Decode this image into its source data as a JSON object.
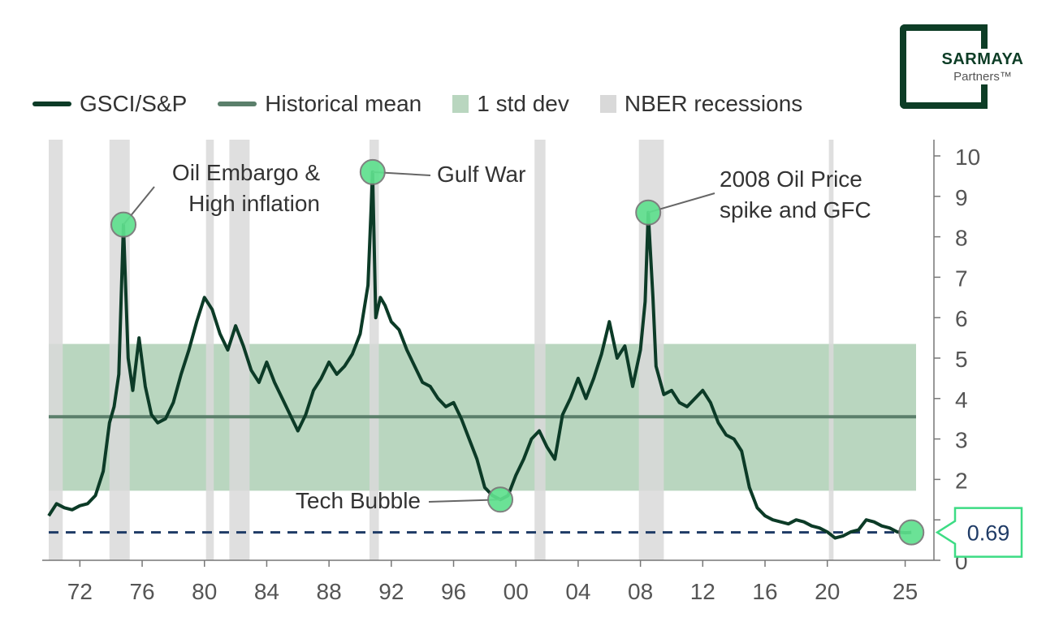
{
  "brand": {
    "name": "SARMAYA",
    "sub": "Partners™"
  },
  "legend": [
    {
      "label": "GSCI/S&P",
      "kind": "line",
      "color": "#0c3b27"
    },
    {
      "label": "Historical mean",
      "kind": "line",
      "color": "#5b7f6b"
    },
    {
      "label": "1 std dev",
      "kind": "box",
      "color": "#b9d6bf"
    },
    {
      "label": "NBER recessions",
      "kind": "box",
      "color": "#d9d9d9"
    }
  ],
  "colors": {
    "line": "#0c3b27",
    "mean": "#5b7f6b",
    "band": "#b9d6bf",
    "recession": "#d9d9d9",
    "marker": "#5fe08e",
    "current": "#1f3b66",
    "callout": "#3ddc84",
    "axis": "#777777"
  },
  "chart_data": {
    "type": "line",
    "title": "",
    "xlabel": "",
    "ylabel": "",
    "xlim": [
      1970.0,
      2025.7
    ],
    "ylim": [
      0,
      10
    ],
    "x_ticks": [
      1972,
      1976,
      1980,
      1984,
      1988,
      1992,
      1996,
      2000,
      2004,
      2008,
      2012,
      2016,
      2020,
      2025
    ],
    "x_tick_labels": [
      "72",
      "76",
      "80",
      "84",
      "88",
      "92",
      "96",
      "00",
      "04",
      "08",
      "12",
      "16",
      "20",
      "25"
    ],
    "y_ticks": [
      0,
      1,
      2,
      3,
      4,
      5,
      6,
      7,
      8,
      9,
      10
    ],
    "y_tick_labels": [
      "0",
      "1",
      "2",
      "3",
      "4",
      "5",
      "6",
      "7",
      "8",
      "9",
      "10"
    ],
    "mean": 3.55,
    "std_band": [
      1.72,
      5.35
    ],
    "recessions": [
      [
        1970.0,
        1970.9
      ],
      [
        1973.9,
        1975.2
      ],
      [
        1980.1,
        1980.6
      ],
      [
        1981.6,
        1982.9
      ],
      [
        1990.6,
        1991.2
      ],
      [
        2001.2,
        2001.9
      ],
      [
        2007.9,
        2009.5
      ],
      [
        2020.1,
        2020.4
      ]
    ],
    "current_value": 0.69,
    "current_label": "0.69",
    "series": [
      {
        "name": "GSCI/S&P",
        "x": [
          1970.0,
          1970.5,
          1971.0,
          1971.5,
          1972.0,
          1972.5,
          1973.0,
          1973.5,
          1973.9,
          1974.2,
          1974.5,
          1974.8,
          1975.1,
          1975.4,
          1975.8,
          1976.2,
          1976.6,
          1977.0,
          1977.5,
          1978.0,
          1978.5,
          1979.0,
          1979.5,
          1980.0,
          1980.5,
          1981.0,
          1981.5,
          1982.0,
          1982.5,
          1983.0,
          1983.5,
          1984.0,
          1984.5,
          1985.0,
          1985.5,
          1986.0,
          1986.5,
          1987.0,
          1987.5,
          1988.0,
          1988.5,
          1989.0,
          1989.5,
          1990.0,
          1990.5,
          1990.8,
          1991.0,
          1991.3,
          1991.6,
          1992.0,
          1992.5,
          1993.0,
          1993.5,
          1994.0,
          1994.5,
          1995.0,
          1995.5,
          1996.0,
          1996.5,
          1997.0,
          1997.5,
          1998.0,
          1998.5,
          1999.0,
          1999.5,
          2000.0,
          2000.5,
          2001.0,
          2001.5,
          2002.0,
          2002.5,
          2003.0,
          2003.5,
          2004.0,
          2004.5,
          2005.0,
          2005.5,
          2006.0,
          2006.5,
          2007.0,
          2007.5,
          2008.0,
          2008.3,
          2008.5,
          2008.8,
          2009.0,
          2009.5,
          2010.0,
          2010.5,
          2011.0,
          2011.5,
          2012.0,
          2012.5,
          2013.0,
          2013.5,
          2014.0,
          2014.5,
          2015.0,
          2015.5,
          2016.0,
          2016.5,
          2017.0,
          2017.5,
          2018.0,
          2018.5,
          2019.0,
          2019.5,
          2020.0,
          2020.5,
          2021.0,
          2021.5,
          2022.0,
          2022.5,
          2023.0,
          2023.5,
          2024.0,
          2024.5,
          2025.0,
          2025.4
        ],
        "y": [
          1.1,
          1.4,
          1.3,
          1.25,
          1.35,
          1.4,
          1.6,
          2.2,
          3.4,
          3.8,
          4.6,
          8.3,
          5.0,
          4.2,
          5.5,
          4.3,
          3.6,
          3.4,
          3.5,
          3.9,
          4.6,
          5.2,
          5.9,
          6.5,
          6.2,
          5.6,
          5.2,
          5.8,
          5.3,
          4.7,
          4.4,
          4.9,
          4.4,
          4.0,
          3.6,
          3.2,
          3.6,
          4.2,
          4.5,
          4.9,
          4.6,
          4.8,
          5.1,
          5.6,
          6.8,
          9.6,
          6.0,
          6.5,
          6.3,
          5.9,
          5.7,
          5.2,
          4.8,
          4.4,
          4.3,
          4.0,
          3.8,
          3.9,
          3.5,
          3.0,
          2.5,
          1.8,
          1.6,
          1.5,
          1.6,
          2.1,
          2.5,
          3.0,
          3.2,
          2.8,
          2.5,
          3.6,
          4.0,
          4.5,
          4.0,
          4.5,
          5.1,
          5.9,
          5.0,
          5.3,
          4.3,
          5.2,
          6.4,
          8.6,
          6.5,
          4.8,
          4.1,
          4.2,
          3.9,
          3.8,
          4.0,
          4.2,
          3.9,
          3.4,
          3.1,
          3.0,
          2.7,
          1.8,
          1.3,
          1.1,
          1.0,
          0.95,
          0.9,
          1.0,
          0.95,
          0.85,
          0.8,
          0.7,
          0.55,
          0.6,
          0.7,
          0.75,
          1.0,
          0.95,
          0.85,
          0.8,
          0.7,
          0.68,
          0.69
        ]
      }
    ],
    "annotations": [
      {
        "lines": [
          "Oil Embargo &",
          "High inflation"
        ],
        "x": 1974.8,
        "y": 8.3,
        "align": "end"
      },
      {
        "lines": [
          "Gulf War"
        ],
        "x": 1990.8,
        "y": 9.6,
        "align": "start"
      },
      {
        "lines": [
          "2008 Oil Price",
          "spike and GFC"
        ],
        "x": 2008.5,
        "y": 8.6,
        "align": "start"
      },
      {
        "lines": [
          "Tech Bubble"
        ],
        "x": 1999.0,
        "y": 1.5,
        "align": "end"
      }
    ]
  }
}
